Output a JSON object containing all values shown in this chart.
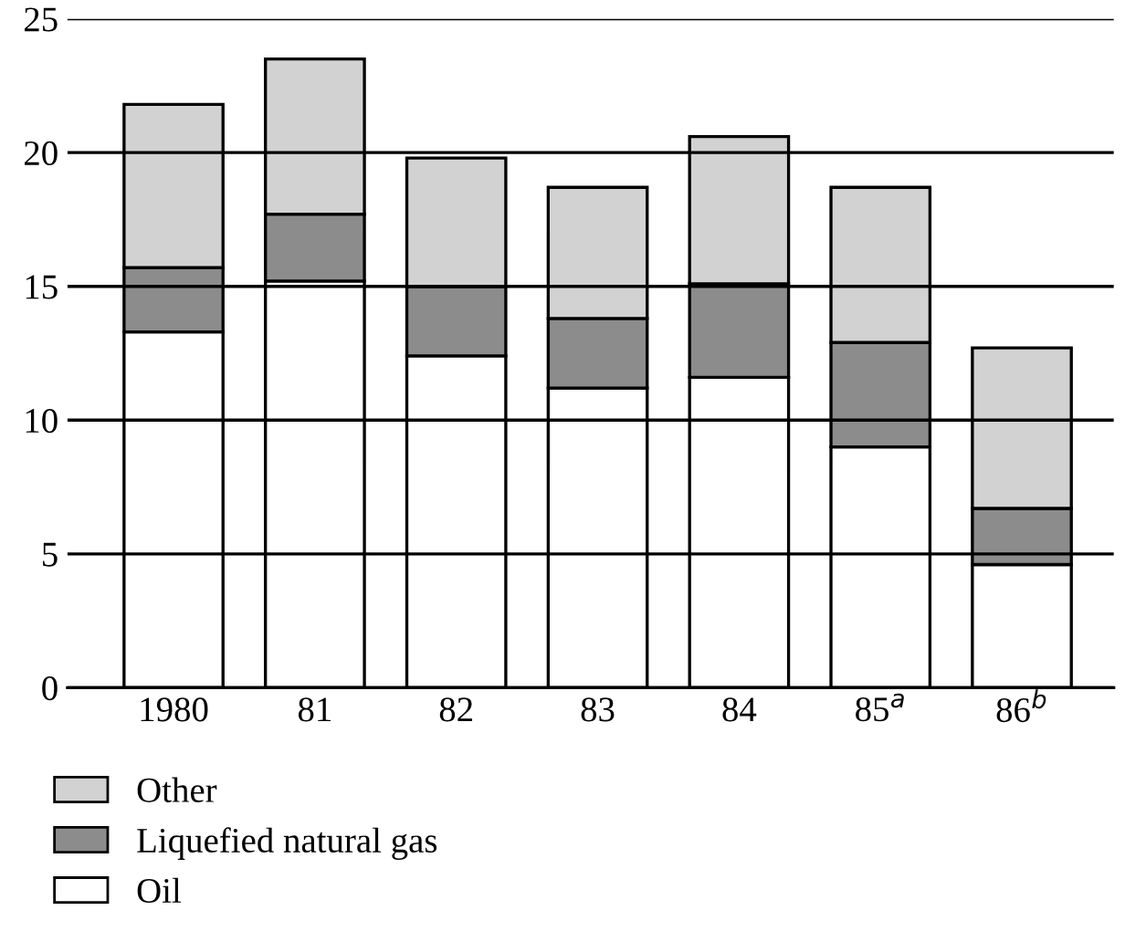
{
  "chart_data": {
    "type": "bar",
    "stacked": true,
    "categories": [
      "1980",
      "81",
      "82",
      "83",
      "84",
      "85$^{a}$",
      "86$^{b}$"
    ],
    "series": [
      {
        "name": "Oil",
        "color": "#ffffff",
        "values": [
          13.3,
          15.2,
          12.4,
          11.2,
          11.6,
          9.0,
          4.6
        ]
      },
      {
        "name": "Liquefied natural gas",
        "color": "#8c8c8c",
        "values": [
          2.4,
          2.5,
          2.6,
          2.6,
          3.5,
          3.9,
          2.1
        ]
      },
      {
        "name": "Other",
        "color": "#d2d2d2",
        "values": [
          6.1,
          5.8,
          4.8,
          4.9,
          5.5,
          5.8,
          6.0
        ]
      }
    ],
    "ylim": [
      0,
      25
    ],
    "yticks": [
      0,
      5,
      10,
      15,
      20,
      25
    ],
    "grid": "y",
    "legend": "bottom left"
  }
}
